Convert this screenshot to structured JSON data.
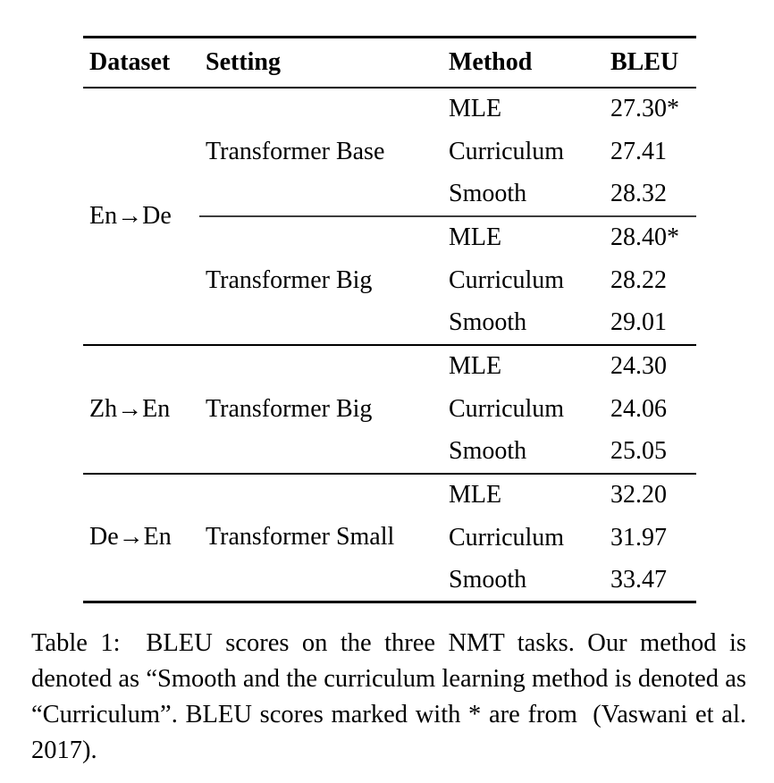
{
  "table": {
    "headers": {
      "dataset": "Dataset",
      "setting": "Setting",
      "method": "Method",
      "bleu": "BLEU"
    },
    "groups": [
      {
        "dataset": "En→De",
        "subgroups": [
          {
            "setting": "Transformer Base",
            "rows": [
              {
                "method": "MLE",
                "bleu": "27.30*"
              },
              {
                "method": "Curriculum",
                "bleu": "27.41"
              },
              {
                "method": "Smooth",
                "bleu": "28.32"
              }
            ]
          },
          {
            "setting": "Transformer Big",
            "rows": [
              {
                "method": "MLE",
                "bleu": "28.40*"
              },
              {
                "method": "Curriculum",
                "bleu": "28.22"
              },
              {
                "method": "Smooth",
                "bleu": "29.01"
              }
            ]
          }
        ]
      },
      {
        "dataset": "Zh→En",
        "subgroups": [
          {
            "setting": "Transformer Big",
            "rows": [
              {
                "method": "MLE",
                "bleu": "24.30"
              },
              {
                "method": "Curriculum",
                "bleu": "24.06"
              },
              {
                "method": "Smooth",
                "bleu": "25.05"
              }
            ]
          }
        ]
      },
      {
        "dataset": "De→En",
        "subgroups": [
          {
            "setting": "Transformer Small",
            "rows": [
              {
                "method": "MLE",
                "bleu": "32.20"
              },
              {
                "method": "Curriculum",
                "bleu": "31.97"
              },
              {
                "method": "Smooth",
                "bleu": "33.47"
              }
            ]
          }
        ]
      }
    ],
    "colors": {
      "text": "#000000",
      "background": "#ffffff",
      "rule": "#000000",
      "midrule": "#3d3d3d"
    }
  },
  "caption": {
    "text": "Table 1:  BLEU scores on the three NMT tasks. Our method is denoted as “Smooth and the curriculum learning method is denoted as “Curriculum”. BLEU scores marked with * are from  (Vaswani et al. 2017)."
  }
}
